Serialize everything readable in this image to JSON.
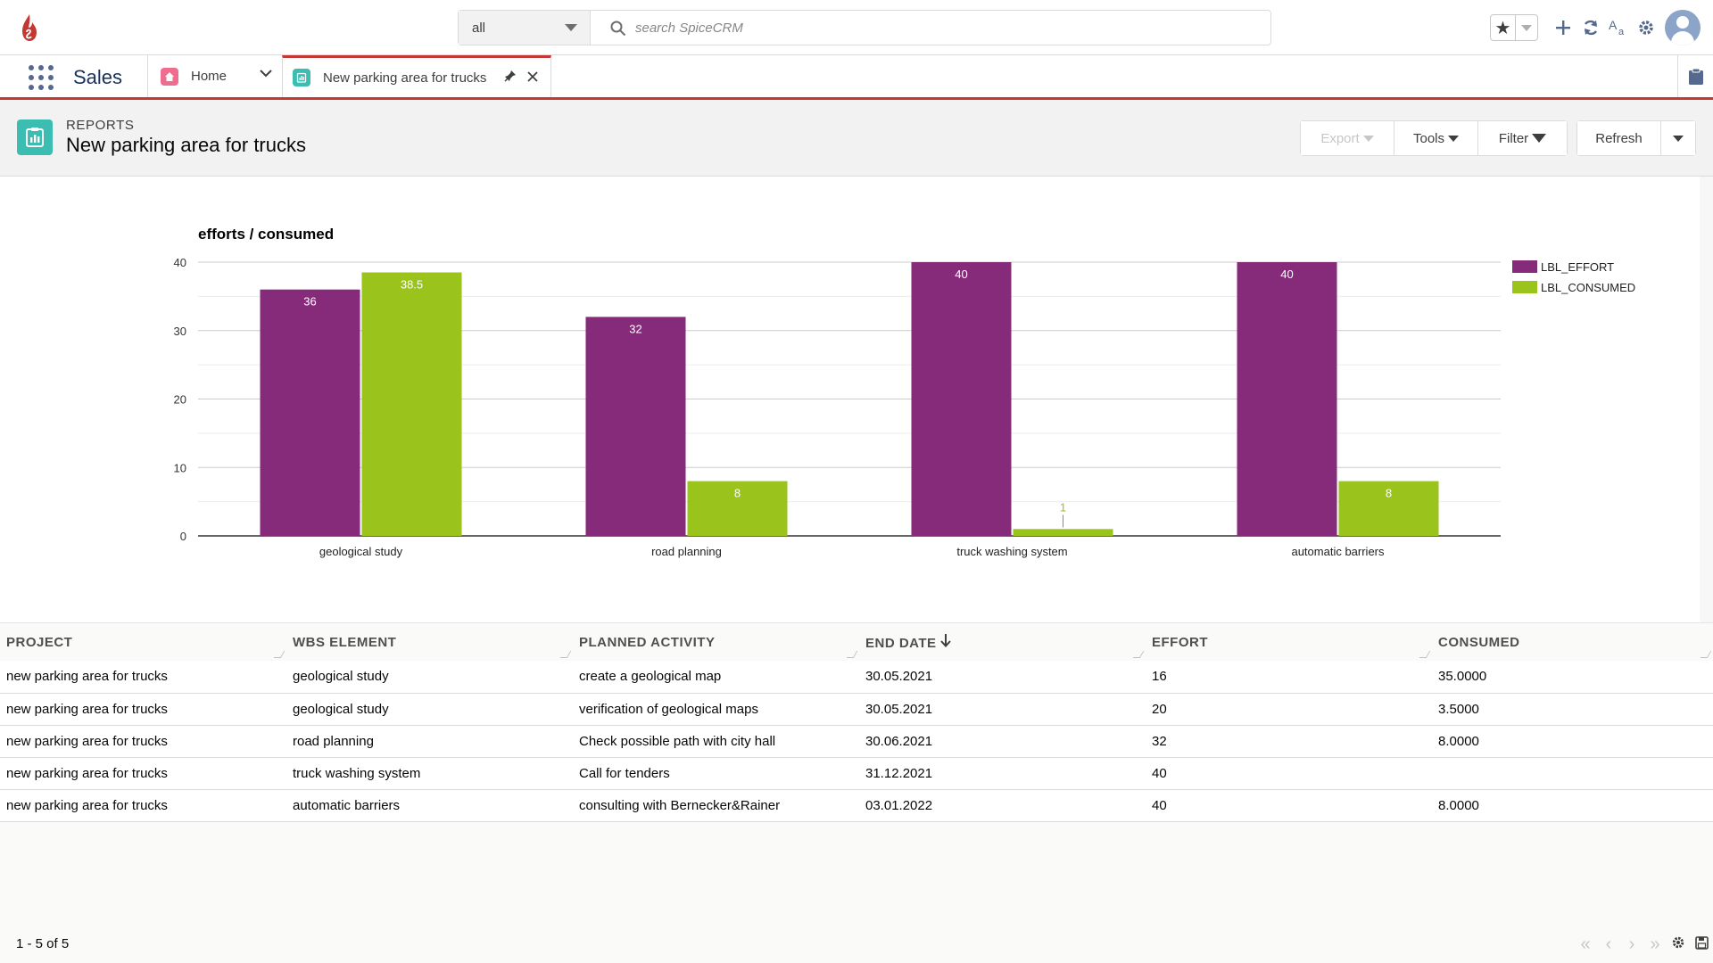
{
  "global_header": {
    "search_scope": "all",
    "search_placeholder": "search SpiceCRM",
    "icons": [
      "spicecrm-logo",
      "search-icon",
      "favorite-star-icon",
      "add-icon",
      "refresh-icon",
      "translation-icon",
      "gear-icon",
      "user-avatar"
    ]
  },
  "nav": {
    "app_name": "Sales",
    "tabs": [
      {
        "label": "Home",
        "icon": "home-icon"
      },
      {
        "label": "New parking area for trucks",
        "icon": "report-icon",
        "active": true
      }
    ]
  },
  "page_header": {
    "module_label": "REPORTS",
    "title": "New parking area for trucks",
    "buttons": {
      "export": "Export",
      "tools": "Tools",
      "filter": "Filter",
      "refresh": "Refresh"
    }
  },
  "chart_data": {
    "type": "bar",
    "title": "efforts / consumed",
    "categories": [
      "geological study",
      "road planning",
      "truck washing system",
      "automatic barriers"
    ],
    "series": [
      {
        "name": "LBL_EFFORT",
        "color": "#862a7a",
        "values": [
          36,
          32,
          40,
          40
        ]
      },
      {
        "name": "LBL_CONSUMED",
        "color": "#9ac31c",
        "values": [
          38.5,
          8,
          1,
          8
        ]
      }
    ],
    "yticks": [
      "0",
      "10",
      "20",
      "30",
      "40"
    ],
    "ylim": [
      0,
      40
    ],
    "grid": true,
    "legend": "right"
  },
  "table": {
    "columns": [
      "PROJECT",
      "WBS ELEMENT",
      "PLANNED ACTIVITY",
      "END DATE",
      "EFFORT",
      "CONSUMED"
    ],
    "sort_column": "END DATE",
    "rows": [
      [
        "new parking area for trucks",
        "geological study",
        "create a geological map",
        "30.05.2021",
        "16",
        "35.0000"
      ],
      [
        "new parking area for trucks",
        "geological study",
        "verification of geological maps",
        "30.05.2021",
        "20",
        "3.5000"
      ],
      [
        "new parking area for trucks",
        "road planning",
        "Check possible path with city hall",
        "30.06.2021",
        "32",
        "8.0000"
      ],
      [
        "new parking area for trucks",
        "truck washing system",
        "Call for tenders",
        "31.12.2021",
        "40",
        ""
      ],
      [
        "new parking area for trucks",
        "automatic barriers",
        "consulting with Bernecker&Rainer",
        "03.01.2022",
        "40",
        "8.0000"
      ]
    ]
  },
  "footer": {
    "count_text": "1 - 5 of 5"
  }
}
